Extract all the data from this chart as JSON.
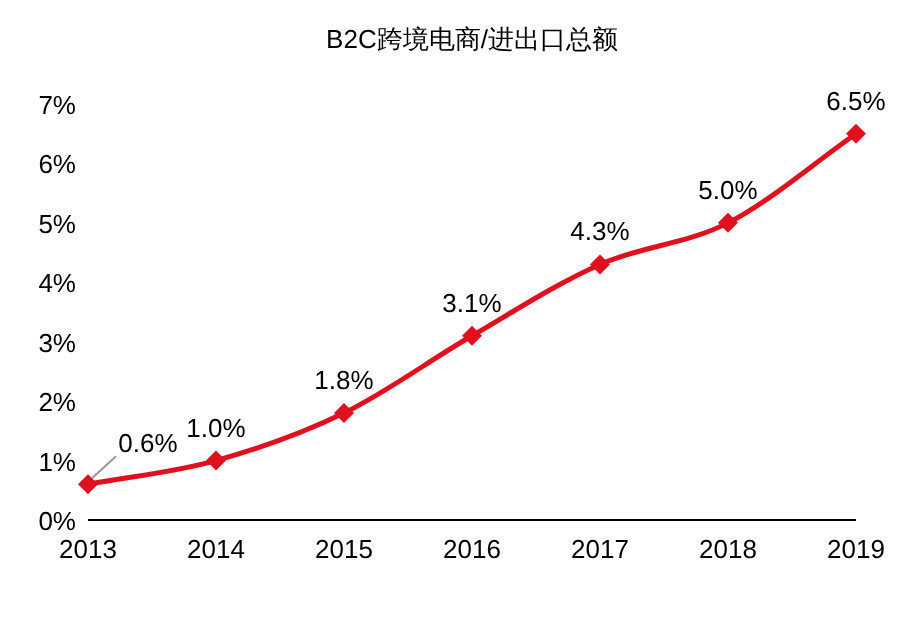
{
  "chart_data": {
    "type": "line",
    "title": "B2C跨境电商/进出口总额",
    "x": [
      2013,
      2014,
      2015,
      2016,
      2017,
      2018,
      2019
    ],
    "series": [
      {
        "color": "#e0101e",
        "values": [
          0.6,
          1.0,
          1.8,
          3.1,
          4.3,
          5.0,
          6.5
        ],
        "value_labels": [
          "0.6%",
          "1.0%",
          "1.8%",
          "3.1%",
          "4.3%",
          "5.0%",
          "6.5%"
        ]
      }
    ],
    "xlim": [
      2013,
      2019
    ],
    "xticks": [
      2013,
      2014,
      2015,
      2016,
      2017,
      2018,
      2019
    ],
    "ylim": [
      0,
      7
    ],
    "yticks": [
      {
        "value": 0,
        "label": "0%"
      },
      {
        "value": 1,
        "label": "1%"
      },
      {
        "value": 2,
        "label": "2%"
      },
      {
        "value": 3,
        "label": "3%"
      },
      {
        "value": 4,
        "label": "4%"
      },
      {
        "value": 5,
        "label": "5%"
      },
      {
        "value": 6,
        "label": "6%"
      },
      {
        "value": 7,
        "label": "7%"
      }
    ],
    "marker": "diamond",
    "line_style": "solid",
    "grid": false
  }
}
